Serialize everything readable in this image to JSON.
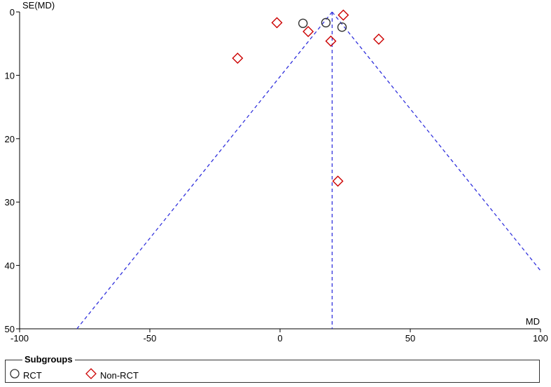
{
  "chart_data": {
    "type": "scatter",
    "subtype": "funnel plot",
    "xlabel": "MD",
    "ylabel": "SE(MD)",
    "xlim": [
      -100,
      100
    ],
    "ylim": [
      0,
      50
    ],
    "y_inverted": true,
    "xticks": [
      -100,
      -50,
      0,
      50,
      100
    ],
    "yticks": [
      0,
      10,
      20,
      30,
      40,
      50
    ],
    "grid": false,
    "pooled_estimate": 20,
    "funnel_lines": {
      "style": "dashed",
      "color": "#3333dd"
    },
    "series": [
      {
        "name": "RCT",
        "marker": "circle",
        "color": "#000000",
        "points": [
          {
            "x": 8.8,
            "y": 1.8
          },
          {
            "x": 17.6,
            "y": 1.7
          },
          {
            "x": 23.8,
            "y": 2.4
          }
        ]
      },
      {
        "name": "Non-RCT",
        "marker": "diamond",
        "color": "#cc0000",
        "points": [
          {
            "x": 24.3,
            "y": 0.5
          },
          {
            "x": -1.2,
            "y": 1.7
          },
          {
            "x": 10.8,
            "y": 3.1
          },
          {
            "x": 19.5,
            "y": 4.6
          },
          {
            "x": 37.9,
            "y": 4.3
          },
          {
            "x": -16.3,
            "y": 7.3
          },
          {
            "x": 22.2,
            "y": 26.7
          }
        ]
      }
    ]
  },
  "legend": {
    "title": "Subgroups",
    "items": [
      {
        "label": "RCT",
        "marker": "circle",
        "color": "#333333"
      },
      {
        "label": "Non-RCT",
        "marker": "diamond",
        "color": "#cc0000"
      }
    ]
  }
}
